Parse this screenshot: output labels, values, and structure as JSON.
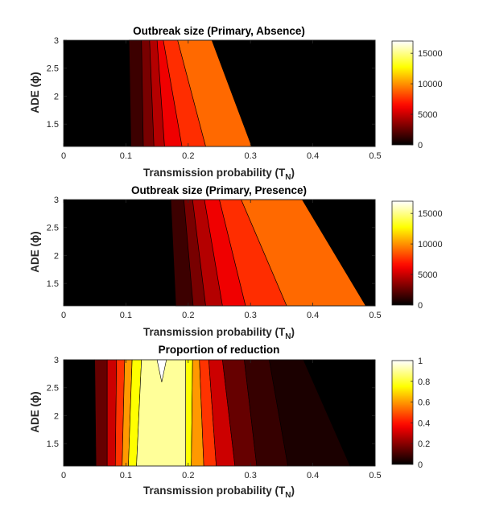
{
  "chart_data": [
    {
      "type": "heatmap",
      "plot": "filled-contour",
      "title": "Outbreak size (Primary, Absence)",
      "xlabel": "Transmission probability (T",
      "xlabel_sub": "N",
      "xlabel_end": ")",
      "ylabel": "ADE (ϕ)",
      "xlim": [
        0,
        0.5
      ],
      "ylim": [
        1.1,
        3
      ],
      "xticks": [
        "0",
        "0.1",
        "0.2",
        "0.3",
        "0.4",
        "0.5"
      ],
      "yticks": [
        "1.5",
        "2",
        "2.5",
        "3"
      ],
      "colorbar": {
        "colormap": "hot",
        "range": [
          0,
          17000
        ],
        "ticks": [
          "0",
          "5000",
          "10000",
          "15000"
        ]
      },
      "levels": [
        0,
        1500,
        3000,
        4500,
        6000,
        7500,
        9000
      ],
      "contours": [
        {
          "x_at_y_low": 0.108,
          "x_at_y_high": 0.105
        },
        {
          "x_at_y_low": 0.128,
          "x_at_y_high": 0.125
        },
        {
          "x_at_y_low": 0.145,
          "x_at_y_high": 0.138
        },
        {
          "x_at_y_low": 0.162,
          "x_at_y_high": 0.15
        },
        {
          "x_at_y_low": 0.19,
          "x_at_y_high": 0.16
        },
        {
          "x_at_y_low": 0.228,
          "x_at_y_high": 0.183
        },
        {
          "x_at_y_low": 0.302,
          "x_at_y_high": 0.238
        }
      ]
    },
    {
      "type": "heatmap",
      "plot": "filled-contour",
      "title": "Outbreak size (Primary, Presence)",
      "xlabel": "Transmission probability (T",
      "xlabel_sub": "N",
      "xlabel_end": ")",
      "ylabel": "ADE (ϕ)",
      "xlim": [
        0,
        0.5
      ],
      "ylim": [
        1.1,
        3
      ],
      "xticks": [
        "0",
        "0.1",
        "0.2",
        "0.3",
        "0.4",
        "0.5"
      ],
      "yticks": [
        "1.5",
        "2",
        "2.5",
        "3"
      ],
      "colorbar": {
        "colormap": "hot",
        "range": [
          0,
          17000
        ],
        "ticks": [
          "0",
          "5000",
          "10000",
          "15000"
        ]
      },
      "levels": [
        0,
        1500,
        3000,
        4500,
        6000,
        7500,
        9000
      ],
      "contours": [
        {
          "x_at_y_low": 0.18,
          "x_at_y_high": 0.172
        },
        {
          "x_at_y_low": 0.208,
          "x_at_y_high": 0.193
        },
        {
          "x_at_y_low": 0.228,
          "x_at_y_high": 0.207
        },
        {
          "x_at_y_low": 0.255,
          "x_at_y_high": 0.226
        },
        {
          "x_at_y_low": 0.292,
          "x_at_y_high": 0.25
        },
        {
          "x_at_y_low": 0.358,
          "x_at_y_high": 0.285
        },
        {
          "x_at_y_low": 0.485,
          "x_at_y_high": 0.383
        }
      ]
    },
    {
      "type": "heatmap",
      "plot": "filled-contour",
      "title": "Proportion of reduction",
      "xlabel": "Transmission probability (T",
      "xlabel_sub": "N",
      "xlabel_end": ")",
      "ylabel": "ADE (ϕ)",
      "xlim": [
        0,
        0.5
      ],
      "ylim": [
        1.1,
        3
      ],
      "xticks": [
        "0",
        "0.1",
        "0.2",
        "0.3",
        "0.4",
        "0.5"
      ],
      "yticks": [
        "1.5",
        "2",
        "2.5",
        "3"
      ],
      "colorbar": {
        "colormap": "hot",
        "range": [
          0,
          1
        ],
        "ticks": [
          "0",
          "0.2",
          "0.4",
          "0.6",
          "0.8",
          "1"
        ]
      },
      "regions": [
        {
          "level": 0.0,
          "x_low": [
            0,
            0.052
          ],
          "x_high": [
            0,
            0.05
          ]
        },
        {
          "level": 0.15,
          "x_low": [
            0.052,
            0.07
          ],
          "x_high": [
            0.05,
            0.07
          ]
        },
        {
          "level": 0.3,
          "x_low": [
            0.07,
            0.083
          ],
          "x_high": [
            0.07,
            0.085
          ]
        },
        {
          "level": 0.45,
          "x_low": [
            0.083,
            0.094
          ],
          "x_high": [
            0.085,
            0.098
          ]
        },
        {
          "level": 0.6,
          "x_low": [
            0.094,
            0.104
          ],
          "x_high": [
            0.098,
            0.11
          ]
        },
        {
          "level": 0.75,
          "x_low": [
            0.104,
            0.117
          ],
          "x_high": [
            0.11,
            0.125
          ]
        },
        {
          "level": 0.9,
          "x_low": [
            0.117,
            0.196
          ],
          "x_high": [
            0.125,
            0.196
          ]
        },
        {
          "level": 0.75,
          "x_low": [
            0.196,
            0.205
          ],
          "x_high": [
            0.196,
            0.207
          ]
        },
        {
          "level": 0.6,
          "x_low": [
            0.205,
            0.225
          ],
          "x_high": [
            0.207,
            0.218
          ]
        },
        {
          "level": 0.45,
          "x_low": [
            0.225,
            0.245
          ],
          "x_high": [
            0.218,
            0.233
          ]
        },
        {
          "level": 0.3,
          "x_low": [
            0.245,
            0.275
          ],
          "x_high": [
            0.233,
            0.255
          ]
        },
        {
          "level": 0.15,
          "x_low": [
            0.275,
            0.31
          ],
          "x_high": [
            0.255,
            0.29
          ]
        },
        {
          "level": 0.08,
          "x_low": [
            0.31,
            0.36
          ],
          "x_high": [
            0.29,
            0.33
          ]
        },
        {
          "level": 0.04,
          "x_low": [
            0.36,
            0.46
          ],
          "x_high": [
            0.33,
            0.385
          ]
        },
        {
          "level": 0.0,
          "x_low": [
            0.46,
            0.5
          ],
          "x_high": [
            0.385,
            0.5
          ]
        }
      ],
      "peak": {
        "level": 1.0,
        "x": [
          0.15,
          0.165
        ],
        "y_tip": 2.6
      }
    }
  ]
}
